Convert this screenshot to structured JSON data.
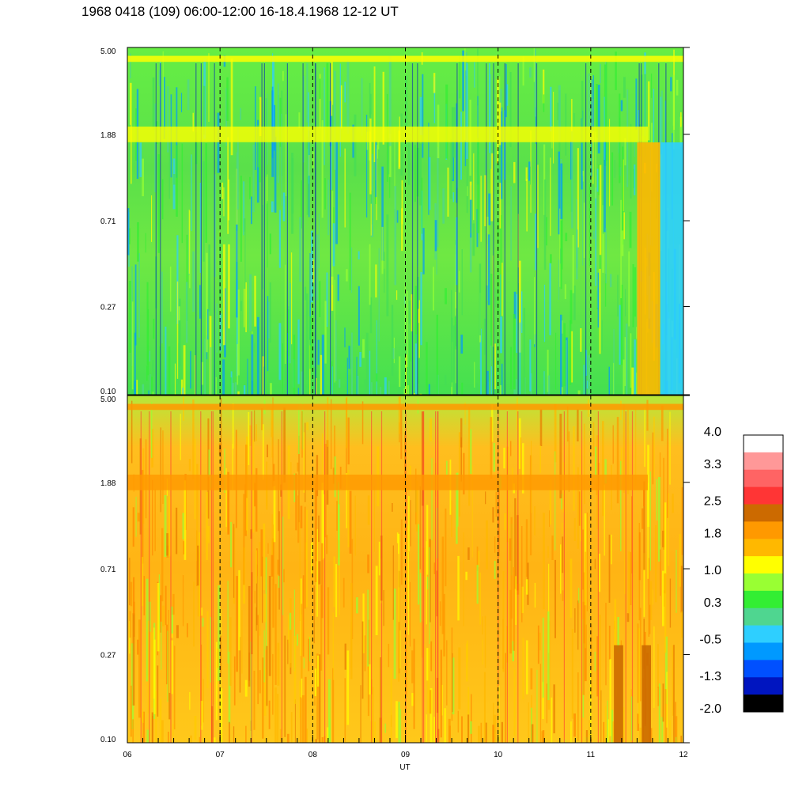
{
  "title": "1968 0418 (109) 06:00-12:00 16-18.4.1968  12-12 UT",
  "chart_data": {
    "type": "heatmap",
    "xlabel": "UT",
    "x_ticks": [
      "06",
      "07",
      "08",
      "09",
      "10",
      "11",
      "12"
    ],
    "x_range": [
      6,
      12
    ],
    "panels": [
      {
        "name": "",
        "y_ticks": [
          "5.00",
          "1.88",
          "0.71",
          "0.27",
          "0.10"
        ],
        "y_scale": "log",
        "y_range": [
          0.1,
          5.0
        ],
        "dominant_levels": "green / yellow-green",
        "features": [
          {
            "y": 4.4,
            "level": 1.0,
            "desc": "band"
          },
          {
            "y": 1.88,
            "level": 1.0,
            "desc": "band"
          },
          {
            "x": [
              11.5,
              11.75
            ],
            "level": 1.8
          },
          {
            "x": [
              11.75,
              12.0
            ],
            "level": -0.5
          }
        ]
      },
      {
        "name": "",
        "y_ticks": [
          "5.00",
          "1.88",
          "0.71",
          "0.27",
          "0.10"
        ],
        "y_scale": "log",
        "y_range": [
          0.1,
          5.0
        ],
        "dominant_levels": "yellow / orange",
        "features": [
          {
            "y": 4.4,
            "level": 1.8,
            "desc": "band"
          },
          {
            "y": 1.88,
            "level": 2.2,
            "desc": "band"
          },
          {
            "x": [
              11.25,
              11.35
            ],
            "level": 2.5
          },
          {
            "x": [
              11.55,
              11.65
            ],
            "level": 2.5
          }
        ]
      }
    ],
    "colorbar": {
      "labels": [
        "4.0",
        "3.3",
        "2.5",
        "1.8",
        "1.0",
        "0.3",
        "-0.5",
        "-1.3",
        "-2.0"
      ],
      "colors": [
        "#ffffff",
        "#ff9898",
        "#ff6464",
        "#ff3535",
        "#cc6a00",
        "#ff9900",
        "#ffb800",
        "#ffff00",
        "#99ff33",
        "#33ee33",
        "#4fd690",
        "#2ecfff",
        "#0099ff",
        "#0050ff",
        "#0015c0",
        "#000000"
      ]
    }
  }
}
